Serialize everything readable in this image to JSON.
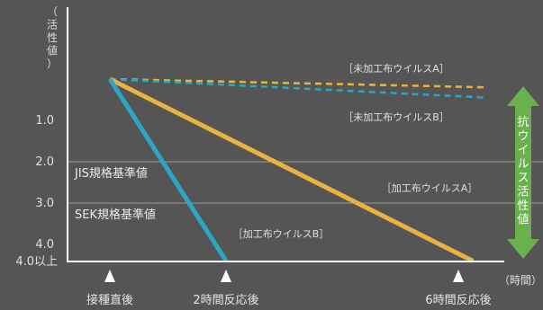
{
  "chart_data": {
    "type": "line",
    "y_axis_label_chars": [
      "（",
      "活",
      "性",
      "値",
      "）"
    ],
    "x_axis_unit": "（時間）",
    "y_ticks": [
      "1.0",
      "2.0",
      "3.0",
      "4.0",
      "4.0以上"
    ],
    "x_ticks": [
      "接種直後",
      "2時間反応後",
      "6時間反応後"
    ],
    "x_values_hours": [
      0,
      2,
      6
    ],
    "ylim": [
      0,
      4.4
    ],
    "reference_lines": [
      {
        "label": "JIS規格基準値",
        "value": 2.0
      },
      {
        "label": "SEK規格基準値",
        "value": 3.0
      }
    ],
    "series": [
      {
        "name": "［未加工布ウイルスA］",
        "color": "#e8b441",
        "dashed": true,
        "points": [
          [
            0,
            0.0
          ],
          [
            6.5,
            0.2
          ]
        ]
      },
      {
        "name": "［未加工布ウイルスB］",
        "color": "#2aa8c2",
        "dashed": true,
        "points": [
          [
            0,
            0.0
          ],
          [
            6.5,
            0.45
          ]
        ]
      },
      {
        "name": "［加工布ウイルスA］",
        "color": "#e8b441",
        "dashed": false,
        "points": [
          [
            0,
            0.0
          ],
          [
            6.25,
            4.4
          ]
        ]
      },
      {
        "name": "［加工布ウイルスB］",
        "color": "#2aa8c2",
        "dashed": false,
        "points": [
          [
            0,
            0.0
          ],
          [
            2.0,
            4.4
          ]
        ]
      }
    ],
    "arrow_label_chars": [
      "抗",
      "ウ",
      "イ",
      "ル",
      "ス",
      "活",
      "性",
      "値"
    ],
    "arrow_color": "#6ab04c"
  }
}
